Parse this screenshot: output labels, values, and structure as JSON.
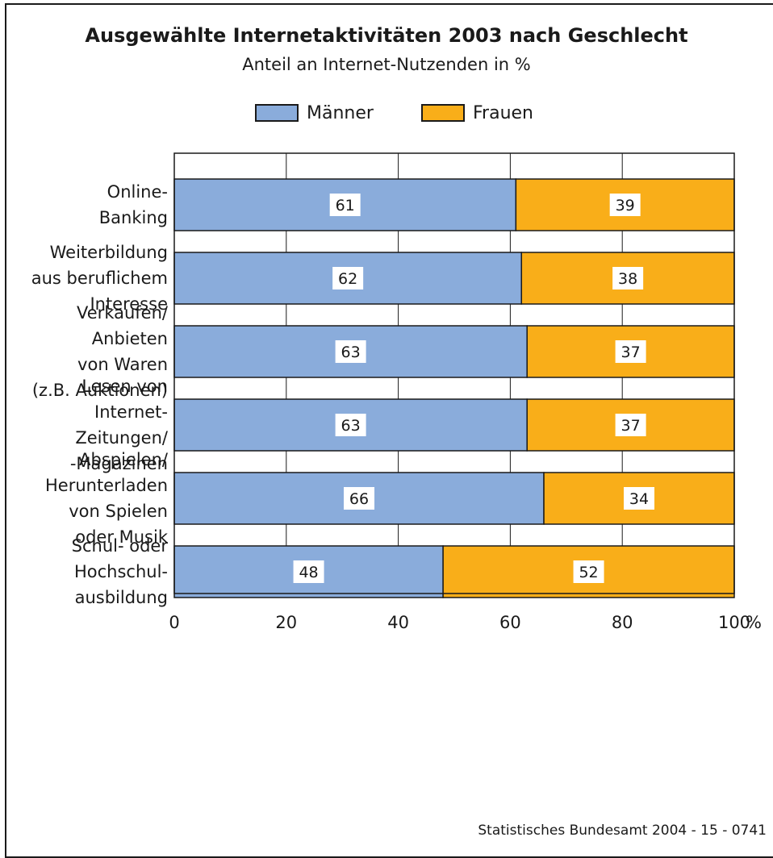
{
  "chart_data": {
    "type": "bar",
    "orientation": "horizontal",
    "stacked": true,
    "title": "Ausgewählte Internetaktivitäten 2003 nach Geschlecht",
    "subtitle": "Anteil an Internet-Nutzenden in %",
    "categories": [
      [
        "Online-",
        "Banking"
      ],
      [
        "Weiterbildung",
        "aus beruflichem",
        "Interesse"
      ],
      [
        "Verkaufen/",
        "Anbieten",
        "von Waren",
        "(z.B. Auktionen)"
      ],
      [
        "Lesen von",
        "Internet-",
        "Zeitungen/",
        "-Magazinen"
      ],
      [
        "Abspielen/",
        "Herunterladen",
        "von Spielen",
        "oder Musik"
      ],
      [
        "Schul- oder",
        "Hochschul-",
        "ausbildung"
      ]
    ],
    "series": [
      {
        "name": "Männer",
        "color": "#8aacdb",
        "values": [
          61,
          62,
          63,
          63,
          66,
          48
        ]
      },
      {
        "name": "Frauen",
        "color": "#f9ae19",
        "values": [
          39,
          38,
          37,
          37,
          34,
          52
        ]
      }
    ],
    "xlim": [
      0,
      100
    ],
    "xticks": [
      "0",
      "20",
      "40",
      "60",
      "80",
      "100"
    ],
    "x_unit": "%",
    "grid": true,
    "legend_position": "top-center",
    "source": "Statistisches Bundesamt 2004 - 15 - 0741"
  }
}
